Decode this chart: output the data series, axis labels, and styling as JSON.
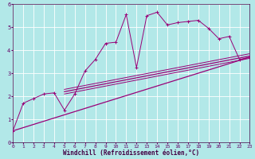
{
  "xlabel": "Windchill (Refroidissement éolien,°C)",
  "bg_color": "#b2e8e8",
  "line_color": "#990077",
  "grid_color": "#ffffff",
  "x_data": [
    0,
    1,
    2,
    3,
    4,
    5,
    6,
    7,
    8,
    9,
    10,
    11,
    12,
    13,
    14,
    15,
    16,
    17,
    18,
    19,
    20,
    21,
    22,
    23
  ],
  "curve1_y": [
    0.5,
    1.7,
    1.9,
    2.1,
    2.15,
    1.4,
    2.1,
    3.1,
    3.6,
    4.3,
    4.35,
    5.55,
    3.25,
    5.5,
    5.65,
    5.1,
    5.2,
    5.25,
    5.3,
    4.95,
    4.5,
    4.6,
    3.6,
    3.7
  ],
  "line1_x": [
    0,
    23
  ],
  "line1_y": [
    0.5,
    3.7
  ],
  "line2_x": [
    5,
    23
  ],
  "line2_y": [
    2.2,
    3.75
  ],
  "line3_x": [
    5,
    23
  ],
  "line3_y": [
    2.1,
    3.65
  ],
  "line4_x": [
    5,
    23
  ],
  "line4_y": [
    2.3,
    3.85
  ],
  "xlim": [
    0,
    23
  ],
  "ylim": [
    0,
    6
  ],
  "xticks": [
    0,
    1,
    2,
    3,
    4,
    5,
    6,
    7,
    8,
    9,
    10,
    11,
    12,
    13,
    14,
    15,
    16,
    17,
    18,
    19,
    20,
    21,
    22,
    23
  ],
  "yticks": [
    0,
    1,
    2,
    3,
    4,
    5,
    6
  ]
}
